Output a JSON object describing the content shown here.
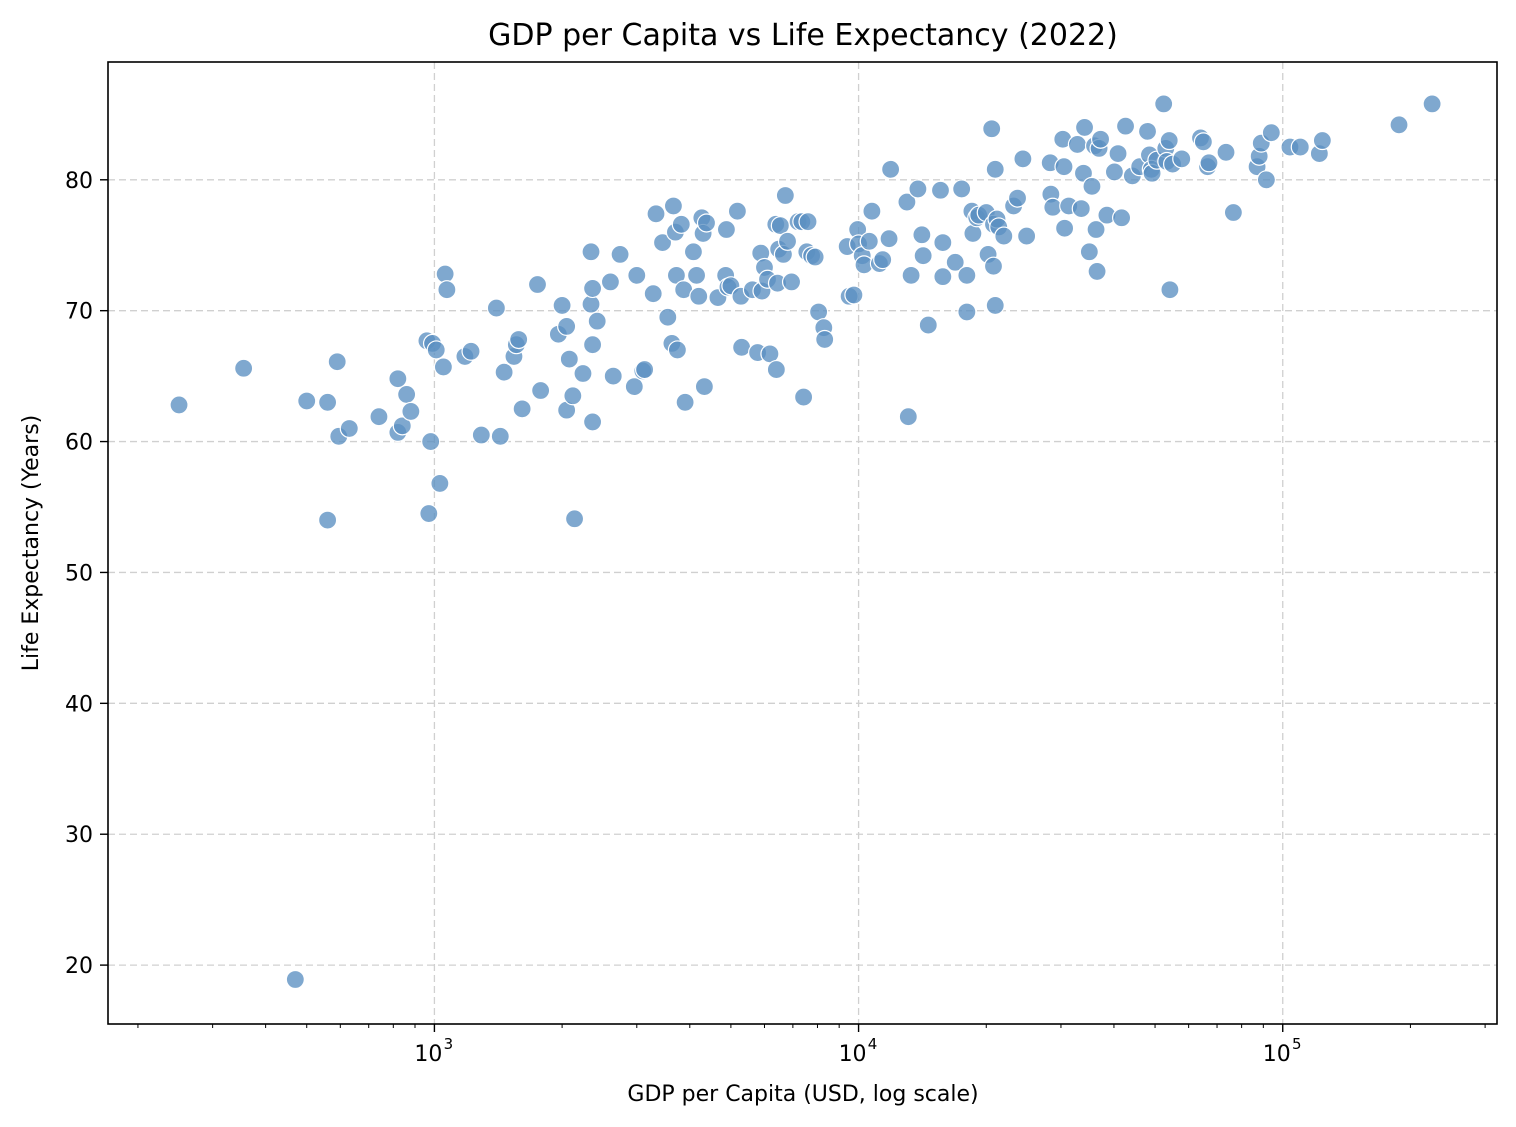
{
  "chart_data": {
    "type": "scatter",
    "title": "GDP per Capita vs Life Expectancy (2022)",
    "xlabel": "GDP per Capita (USD, log scale)",
    "ylabel": "Life Expectancy (Years)",
    "xscale": "log",
    "xlim": [
      170,
      320000
    ],
    "ylim": [
      15.5,
      89
    ],
    "x_ticks": [
      {
        "value": 1000,
        "base": "10",
        "exp": "3"
      },
      {
        "value": 10000,
        "base": "10",
        "exp": "4"
      },
      {
        "value": 100000,
        "base": "10",
        "exp": "5"
      }
    ],
    "y_ticks": [
      20,
      30,
      40,
      50,
      60,
      70,
      80
    ],
    "grid": true,
    "marker_color": "#5b8fc1",
    "marker_edge": "#ffffff",
    "points": [
      [
        250,
        62.8
      ],
      [
        355,
        65.6
      ],
      [
        470,
        18.9
      ],
      [
        500,
        63.1
      ],
      [
        560,
        63.0
      ],
      [
        560,
        54.0
      ],
      [
        590,
        66.1
      ],
      [
        595,
        60.4
      ],
      [
        630,
        61.0
      ],
      [
        740,
        61.9
      ],
      [
        820,
        64.8
      ],
      [
        820,
        60.7
      ],
      [
        840,
        61.2
      ],
      [
        860,
        63.6
      ],
      [
        880,
        62.3
      ],
      [
        960,
        67.7
      ],
      [
        970,
        54.5
      ],
      [
        980,
        60.0
      ],
      [
        990,
        67.5
      ],
      [
        1010,
        67.0
      ],
      [
        1030,
        56.8
      ],
      [
        1050,
        65.7
      ],
      [
        1060,
        72.8
      ],
      [
        1070,
        71.6
      ],
      [
        1180,
        66.5
      ],
      [
        1220,
        66.9
      ],
      [
        1290,
        60.5
      ],
      [
        1400,
        70.2
      ],
      [
        1430,
        60.4
      ],
      [
        1460,
        65.3
      ],
      [
        1540,
        66.5
      ],
      [
        1560,
        67.4
      ],
      [
        1580,
        67.8
      ],
      [
        1610,
        62.5
      ],
      [
        1750,
        72.0
      ],
      [
        1780,
        63.9
      ],
      [
        1960,
        68.2
      ],
      [
        2000,
        70.4
      ],
      [
        2050,
        68.8
      ],
      [
        2050,
        62.4
      ],
      [
        2080,
        66.3
      ],
      [
        2120,
        63.5
      ],
      [
        2140,
        54.1
      ],
      [
        2240,
        65.2
      ],
      [
        2340,
        74.5
      ],
      [
        2340,
        70.5
      ],
      [
        2360,
        71.7
      ],
      [
        2360,
        67.4
      ],
      [
        2360,
        61.5
      ],
      [
        2420,
        69.2
      ],
      [
        2600,
        72.2
      ],
      [
        2640,
        65.0
      ],
      [
        2740,
        74.3
      ],
      [
        2960,
        64.2
      ],
      [
        3000,
        72.7
      ],
      [
        3100,
        65.4
      ],
      [
        3130,
        65.5
      ],
      [
        3280,
        71.3
      ],
      [
        3330,
        77.4
      ],
      [
        3450,
        75.2
      ],
      [
        3550,
        69.5
      ],
      [
        3630,
        67.5
      ],
      [
        3660,
        78.0
      ],
      [
        3700,
        76.0
      ],
      [
        3720,
        72.7
      ],
      [
        3740,
        67.0
      ],
      [
        3820,
        76.6
      ],
      [
        3870,
        71.6
      ],
      [
        3900,
        63.0
      ],
      [
        4080,
        74.5
      ],
      [
        4150,
        72.7
      ],
      [
        4200,
        71.1
      ],
      [
        4270,
        77.1
      ],
      [
        4300,
        75.9
      ],
      [
        4330,
        64.2
      ],
      [
        4380,
        76.7
      ],
      [
        4660,
        71.0
      ],
      [
        4860,
        72.7
      ],
      [
        4880,
        76.2
      ],
      [
        4920,
        71.8
      ],
      [
        5000,
        71.9
      ],
      [
        5180,
        77.6
      ],
      [
        5280,
        71.1
      ],
      [
        5300,
        67.2
      ],
      [
        5620,
        71.6
      ],
      [
        5780,
        66.8
      ],
      [
        5880,
        74.4
      ],
      [
        5920,
        71.5
      ],
      [
        6000,
        73.3
      ],
      [
        6100,
        72.4
      ],
      [
        6180,
        66.7
      ],
      [
        6380,
        76.6
      ],
      [
        6400,
        65.5
      ],
      [
        6440,
        72.1
      ],
      [
        6480,
        74.7
      ],
      [
        6540,
        76.5
      ],
      [
        6650,
        74.3
      ],
      [
        6720,
        78.8
      ],
      [
        6800,
        75.3
      ],
      [
        6950,
        72.2
      ],
      [
        7200,
        76.8
      ],
      [
        7350,
        76.8
      ],
      [
        7420,
        63.4
      ],
      [
        7550,
        74.5
      ],
      [
        7600,
        76.8
      ],
      [
        7750,
        74.2
      ],
      [
        7900,
        74.1
      ],
      [
        8050,
        69.9
      ],
      [
        8280,
        68.7
      ],
      [
        8320,
        67.8
      ],
      [
        9400,
        74.9
      ],
      [
        9500,
        71.1
      ],
      [
        9750,
        71.2
      ],
      [
        9950,
        76.2
      ],
      [
        10000,
        75.1
      ],
      [
        10200,
        74.2
      ],
      [
        10300,
        73.5
      ],
      [
        10600,
        75.3
      ],
      [
        10750,
        77.6
      ],
      [
        11200,
        73.6
      ],
      [
        11400,
        73.9
      ],
      [
        11800,
        75.5
      ],
      [
        11900,
        80.8
      ],
      [
        13000,
        78.3
      ],
      [
        13100,
        61.9
      ],
      [
        13300,
        72.7
      ],
      [
        13800,
        79.3
      ],
      [
        14100,
        75.8
      ],
      [
        14200,
        74.2
      ],
      [
        14600,
        68.9
      ],
      [
        15600,
        79.2
      ],
      [
        15800,
        72.6
      ],
      [
        15800,
        75.2
      ],
      [
        16900,
        73.7
      ],
      [
        17500,
        79.3
      ],
      [
        18000,
        69.9
      ],
      [
        18000,
        72.7
      ],
      [
        18500,
        77.6
      ],
      [
        18600,
        75.9
      ],
      [
        19000,
        77.1
      ],
      [
        19200,
        77.3
      ],
      [
        20000,
        77.5
      ],
      [
        20200,
        74.3
      ],
      [
        20600,
        83.9
      ],
      [
        20800,
        76.6
      ],
      [
        20800,
        73.4
      ],
      [
        21000,
        80.8
      ],
      [
        21000,
        70.4
      ],
      [
        21200,
        77.0
      ],
      [
        21400,
        76.4
      ],
      [
        22000,
        75.7
      ],
      [
        23200,
        78.0
      ],
      [
        23700,
        78.6
      ],
      [
        24400,
        81.6
      ],
      [
        24900,
        75.7
      ],
      [
        28300,
        81.3
      ],
      [
        28400,
        78.9
      ],
      [
        28700,
        77.9
      ],
      [
        30300,
        83.1
      ],
      [
        30500,
        81.0
      ],
      [
        30600,
        76.3
      ],
      [
        31300,
        78.0
      ],
      [
        32800,
        82.7
      ],
      [
        33500,
        77.8
      ],
      [
        33900,
        80.5
      ],
      [
        34100,
        84.0
      ],
      [
        35000,
        74.5
      ],
      [
        35500,
        79.5
      ],
      [
        36000,
        82.6
      ],
      [
        36300,
        76.2
      ],
      [
        36500,
        73.0
      ],
      [
        36900,
        82.4
      ],
      [
        37200,
        83.1
      ],
      [
        38500,
        77.3
      ],
      [
        40100,
        80.6
      ],
      [
        40900,
        82.0
      ],
      [
        41700,
        77.1
      ],
      [
        42600,
        84.1
      ],
      [
        44200,
        80.3
      ],
      [
        46000,
        81.0
      ],
      [
        48000,
        83.7
      ],
      [
        48500,
        81.9
      ],
      [
        49000,
        80.8
      ],
      [
        49200,
        80.5
      ],
      [
        50500,
        81.5
      ],
      [
        52400,
        85.8
      ],
      [
        53000,
        82.4
      ],
      [
        53300,
        81.4
      ],
      [
        54000,
        83.0
      ],
      [
        54200,
        71.6
      ],
      [
        55000,
        81.2
      ],
      [
        57800,
        81.6
      ],
      [
        64000,
        83.2
      ],
      [
        65000,
        82.9
      ],
      [
        66500,
        81.0
      ],
      [
        67000,
        81.3
      ],
      [
        73500,
        82.1
      ],
      [
        76500,
        77.5
      ],
      [
        87000,
        81.0
      ],
      [
        88000,
        81.8
      ],
      [
        89000,
        82.8
      ],
      [
        91500,
        80.0
      ],
      [
        94000,
        83.6
      ],
      [
        104000,
        82.5
      ],
      [
        110000,
        82.5
      ],
      [
        122000,
        82.0
      ],
      [
        124000,
        83.0
      ],
      [
        188000,
        84.2
      ],
      [
        225000,
        85.8
      ]
    ]
  }
}
